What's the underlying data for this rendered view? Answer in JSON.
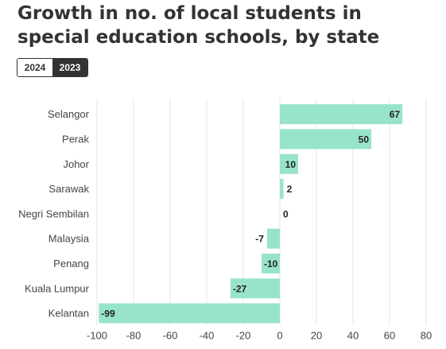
{
  "title": "Growth in no. of local students in special education schools, by state",
  "tabs": [
    {
      "label": "2024",
      "active": false
    },
    {
      "label": "2023",
      "active": true
    }
  ],
  "colors": {
    "bar": "#98e4cb",
    "text": "#333333",
    "grid": "#e6e6e6"
  },
  "chart_data": {
    "type": "bar",
    "orientation": "horizontal",
    "categories": [
      "Selangor",
      "Perak",
      "Johor",
      "Sarawak",
      "Negri Sembilan",
      "Malaysia",
      "Penang",
      "Kuala Lumpur",
      "Kelantan"
    ],
    "values": [
      67,
      50,
      10,
      2,
      0,
      -7,
      -10,
      -27,
      -99
    ],
    "xlim": [
      -100,
      80
    ],
    "xticks": [
      -100,
      -80,
      -60,
      -40,
      -20,
      0,
      20,
      40,
      60,
      80
    ],
    "grid": true
  }
}
